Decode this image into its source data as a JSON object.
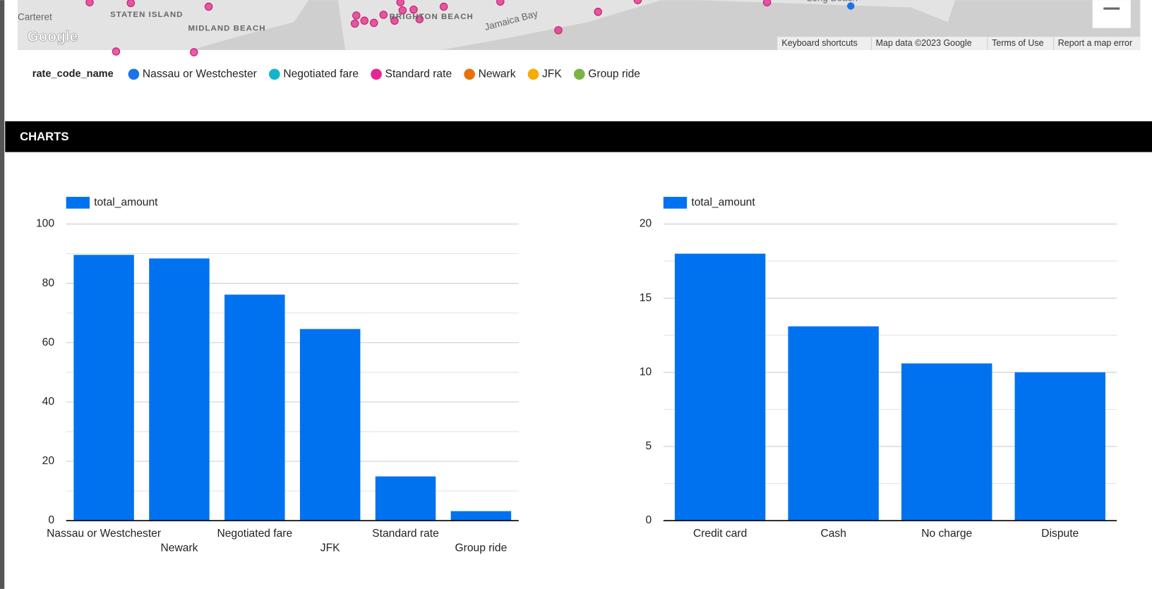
{
  "map": {
    "places": [
      "Carteret",
      "STATEN ISLAND",
      "MIDLAND BEACH",
      "BRIGHTON BEACH",
      "Jamaica Bay",
      "Long Beach"
    ],
    "logo": "Google",
    "footer": [
      "Keyboard shortcuts",
      "Map data ©2023 Google",
      "Terms of Use",
      "Report a map error"
    ]
  },
  "map_legend": {
    "title": "rate_code_name",
    "items": [
      {
        "name": "Nassau or Westchester",
        "color": "#1a73e8"
      },
      {
        "name": "Negotiated fare",
        "color": "#12b5cb"
      },
      {
        "name": "Standard rate",
        "color": "#e52592"
      },
      {
        "name": "Newark",
        "color": "#e8710a"
      },
      {
        "name": "JFK",
        "color": "#f9ab00"
      },
      {
        "name": "Group ride",
        "color": "#7cb342"
      }
    ]
  },
  "section": {
    "title": "CHARTS"
  },
  "chart_data": [
    {
      "type": "bar",
      "categories": [
        "Nassau or Westchester",
        "Newark",
        "Negotiated fare",
        "JFK",
        "Standard rate",
        "Group ride"
      ],
      "series": [
        {
          "name": "total_amount",
          "color": "#0072f0",
          "values": [
            89.6,
            88.4,
            76.2,
            64.6,
            14.9,
            3.2
          ]
        }
      ],
      "ylim": [
        0,
        100
      ],
      "yticks": [
        0,
        20,
        40,
        60,
        80,
        100
      ],
      "grid": true
    },
    {
      "type": "bar",
      "categories": [
        "Credit card",
        "Cash",
        "No charge",
        "Dispute"
      ],
      "series": [
        {
          "name": "total_amount",
          "color": "#0072f0",
          "values": [
            18.0,
            13.1,
            10.6,
            10.0
          ]
        }
      ],
      "ylim": [
        0,
        20
      ],
      "yticks": [
        0,
        5,
        10,
        15,
        20
      ],
      "grid": true
    }
  ]
}
